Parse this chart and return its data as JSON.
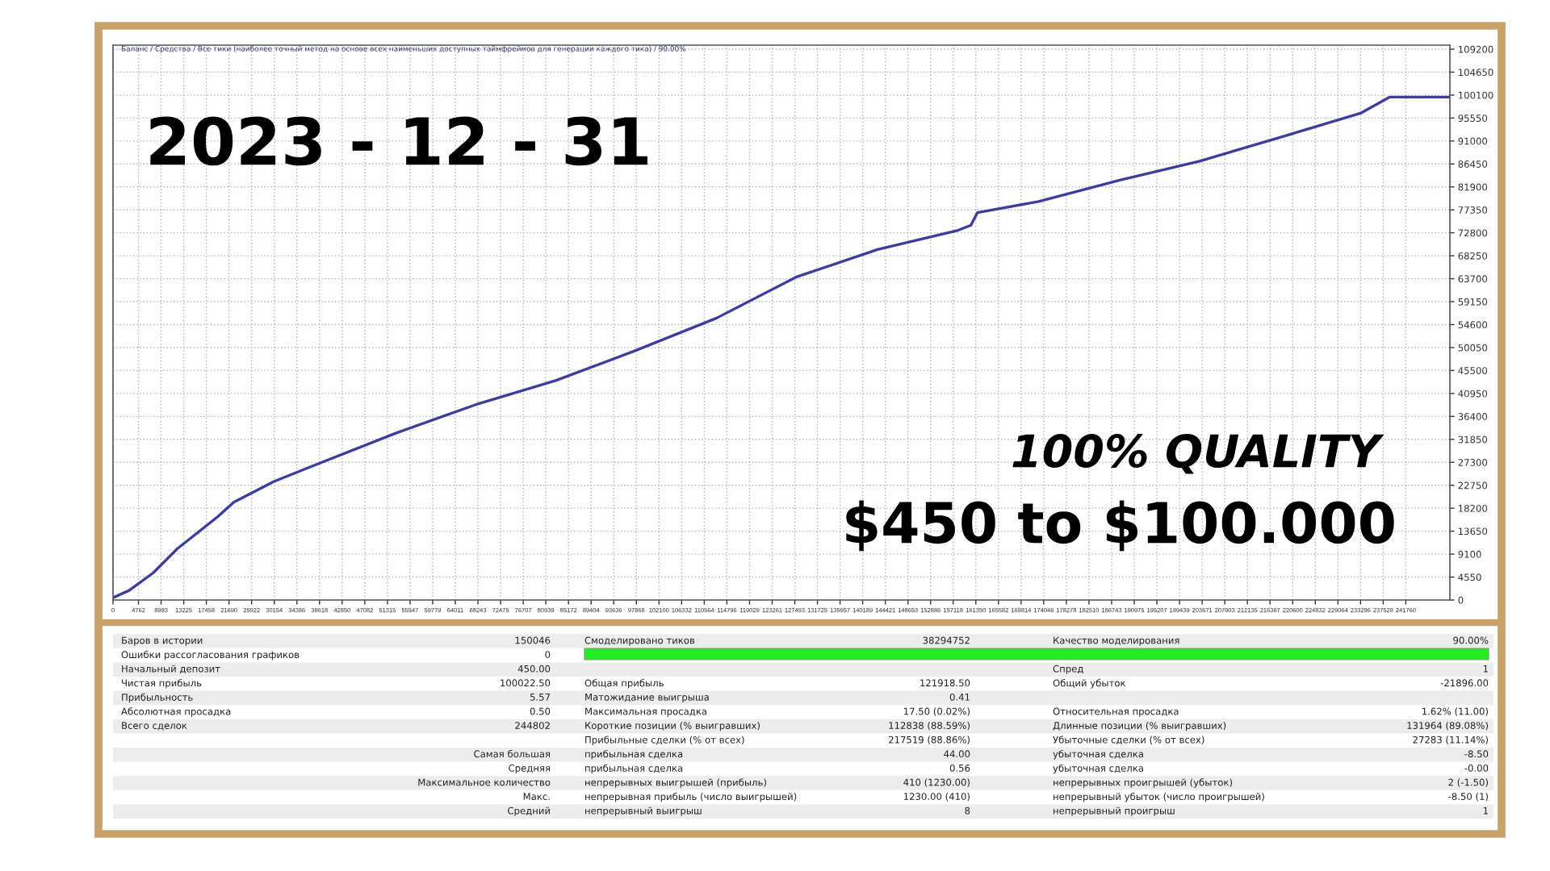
{
  "chart_data": {
    "type": "line",
    "title": "Баланс / Средства / Все тики (наиболее точный метод на основе всех наименьших доступных таймфреймов для генерации каждого тика) / 90.00%",
    "x": [
      0,
      3010,
      7525,
      12040,
      19565,
      22575,
      30100,
      37625,
      52675,
      67725,
      82775,
      97825,
      112875,
      127925,
      142975,
      158025,
      160433,
      161637,
      173075,
      188125,
      203175,
      218225,
      233275,
      238693,
      249830
    ],
    "series": [
      {
        "color": "#3d3d9e",
        "values": [
          450,
          1900,
          5400,
          10200,
          16500,
          19400,
          23500,
          26700,
          33000,
          38700,
          43500,
          49500,
          55900,
          64100,
          69500,
          73300,
          74300,
          76800,
          79000,
          83200,
          87000,
          91700,
          96500,
          99700,
          99700
        ]
      }
    ],
    "xlim": [
      0,
      250000
    ],
    "ylim": [
      0,
      110000
    ],
    "xticks": [
      0,
      4762,
      8993,
      13225,
      17458,
      21690,
      25922,
      30154,
      34386,
      38618,
      42850,
      47082,
      51315,
      55547,
      59779,
      64011,
      68243,
      72475,
      76707,
      80939,
      85172,
      89404,
      93636,
      97868,
      102100,
      106332,
      110564,
      114796,
      119029,
      123261,
      127493,
      131725,
      135957,
      140189,
      144421,
      148653,
      152886,
      157118,
      161350,
      165582,
      169814,
      174046,
      178278,
      182510,
      186743,
      190975,
      195207,
      199439,
      203671,
      207903,
      212135,
      216367,
      220600,
      224832,
      229064,
      233296,
      237528,
      241760
    ],
    "yticks": [
      0,
      4550,
      9100,
      13650,
      18200,
      22750,
      27300,
      31850,
      36400,
      40950,
      45500,
      50050,
      54600,
      59150,
      63700,
      68250,
      72800,
      77350,
      81900,
      86450,
      91000,
      95550,
      100100,
      104650,
      109200
    ],
    "grid": true,
    "line_style": "solid",
    "annotations": [
      "2023 - 12 - 31",
      "100% QUALITY",
      "$450 to $100.000",
      "Баров в истории",
      "150046",
      "Смоделировано тиков",
      "38294752",
      "Качество моделирования",
      "90.00%",
      "Ошибки рассогласования графиков",
      "0",
      "Начальный депозит",
      "450.00",
      "Спред",
      "1",
      "Чистая прибыль",
      "100022.50",
      "Общая прибыль",
      "121918.50",
      "Общий убыток",
      "-21896.00",
      "Прибыльность",
      "5.57",
      "Матожидание выигрыша",
      "0.41",
      "Абсолютная просадка",
      "0.50",
      "Максимальная просадка",
      "17.50 (0.02%)",
      "Относительная просадка",
      "1.62% (11.00)",
      "Всего сделок",
      "244802",
      "Короткие позиции (% выигравших)",
      "112838 (88.59%)",
      "Длинные позиции (% выигравших)",
      "131964 (89.08%)",
      "Прибыльные сделки (% от всех)",
      "217519 (88.86%)",
      "Убыточные сделки (% от всех)",
      "27283 (11.14%)",
      "Самая большая",
      "прибыльная сделка",
      "44.00",
      "убыточная сделка",
      "-8.50",
      "Средняя",
      "прибыльная сделка",
      "0.56",
      "убыточная сделка",
      "-0.00",
      "Максимальное количество",
      "непрерывных выигрышей (прибыль)",
      "410 (1230.00)",
      "непрерывных проигрышей (убыток)",
      "2 (-1.50)",
      "Макс.",
      "непрерывная прибыль (число выигрышей)",
      "1230.00 (410)",
      "непрерывный убыток (число проигрышей)",
      "-8.50 (1)",
      "Средний",
      "непрерывный выигрыш",
      "8",
      "непрерывный проигрыш",
      "1"
    ]
  }
}
